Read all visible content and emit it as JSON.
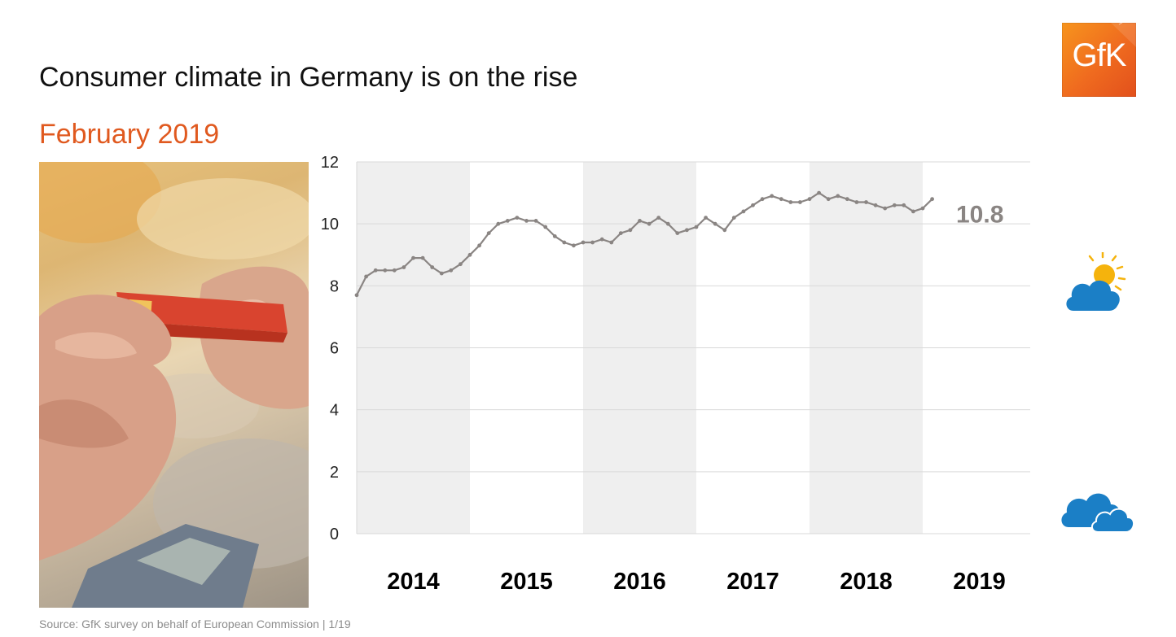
{
  "header": {
    "title": "Consumer climate in Germany is on the rise",
    "subtitle": "February 2019"
  },
  "brand": {
    "logo_text": "GfK",
    "accent": "#e0591f",
    "logo_color": "#ef6a1f"
  },
  "footer": {
    "source": "Source: GfK survey on behalf of European Commission | 1/19"
  },
  "icons": {
    "photo": "credit-card-payment-photo",
    "improving": "sun-behind-cloud-icon",
    "cloudy": "two-clouds-icon"
  },
  "chart_data": {
    "type": "line",
    "title": "Consumer climate in Germany is on the rise",
    "subtitle": "February 2019",
    "xlabel": "",
    "ylabel": "",
    "ylim": [
      0,
      12
    ],
    "yticks": [
      0,
      2,
      4,
      6,
      8,
      10,
      12
    ],
    "x_year_labels": [
      "2014",
      "2015",
      "2016",
      "2017",
      "2018",
      "2019"
    ],
    "x_start": "2014-01",
    "shaded_years": [
      "2014",
      "2016",
      "2018"
    ],
    "line_color": "#8a8583",
    "last_value_label": "10.8",
    "series": [
      {
        "name": "Consumer climate",
        "values": [
          7.7,
          8.3,
          8.5,
          8.5,
          8.5,
          8.6,
          8.9,
          8.9,
          8.6,
          8.4,
          8.5,
          8.7,
          9.0,
          9.3,
          9.7,
          10.0,
          10.1,
          10.2,
          10.1,
          10.1,
          9.9,
          9.6,
          9.4,
          9.3,
          9.4,
          9.4,
          9.5,
          9.4,
          9.7,
          9.8,
          10.1,
          10.0,
          10.2,
          10.0,
          9.7,
          9.8,
          9.9,
          10.2,
          10.0,
          9.8,
          10.2,
          10.4,
          10.6,
          10.8,
          10.9,
          10.8,
          10.7,
          10.7,
          10.8,
          11.0,
          10.8,
          10.9,
          10.8,
          10.7,
          10.7,
          10.6,
          10.5,
          10.6,
          10.6,
          10.4,
          10.5,
          10.8
        ]
      }
    ]
  }
}
